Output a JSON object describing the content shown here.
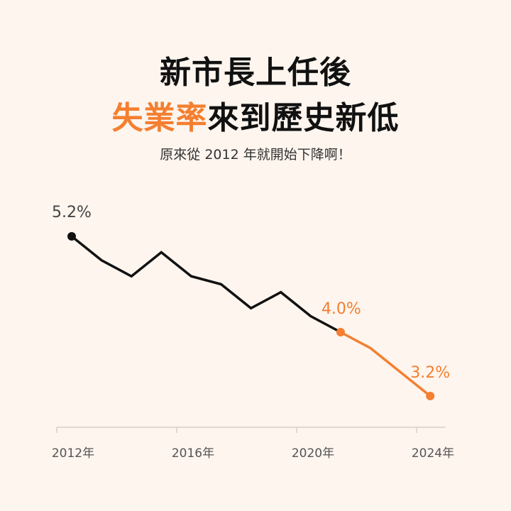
{
  "header": {
    "title_line1": "新市長上任後",
    "title_line2_highlight": "失業率",
    "title_line2_rest": "來到歷史新低",
    "subtitle": "原來從 2012 年就開始下降啊！"
  },
  "colors": {
    "background": "#fdf5ee",
    "before": "#111111",
    "after": "#f47f30",
    "axis": "#d8d0c8"
  },
  "chart_data": {
    "type": "line",
    "title": "新市長上任後失業率來到歷史新低",
    "subtitle": "原來從 2012 年就開始下降啊！",
    "xlabel": "",
    "ylabel": "",
    "x": [
      2012,
      2013,
      2014,
      2015,
      2016,
      2017,
      2018,
      2019,
      2020,
      2021,
      2022,
      2024
    ],
    "series": [
      {
        "segment": "before",
        "color": "#111111",
        "x": [
          2012,
          2013,
          2014,
          2015,
          2016,
          2017,
          2018,
          2019,
          2020,
          2021
        ],
        "values": [
          5.2,
          4.9,
          4.7,
          5.0,
          4.7,
          4.6,
          4.3,
          4.5,
          4.2,
          4.0
        ]
      },
      {
        "segment": "after",
        "color": "#f47f30",
        "x": [
          2021,
          2022,
          2024
        ],
        "values": [
          4.0,
          3.8,
          3.2
        ]
      }
    ],
    "x_ticks": [
      "2012年",
      "2016年",
      "2020年",
      "2024年"
    ],
    "data_labels": [
      {
        "x": 2012,
        "value": 5.2,
        "text": "5.2%",
        "color": "#444444"
      },
      {
        "x": 2021,
        "value": 4.0,
        "text": "4.0%",
        "color": "#f47f30"
      },
      {
        "x": 2024,
        "value": 3.2,
        "text": "3.2%",
        "color": "#f47f30"
      }
    ],
    "grid": false,
    "y_axis_visible": false
  }
}
